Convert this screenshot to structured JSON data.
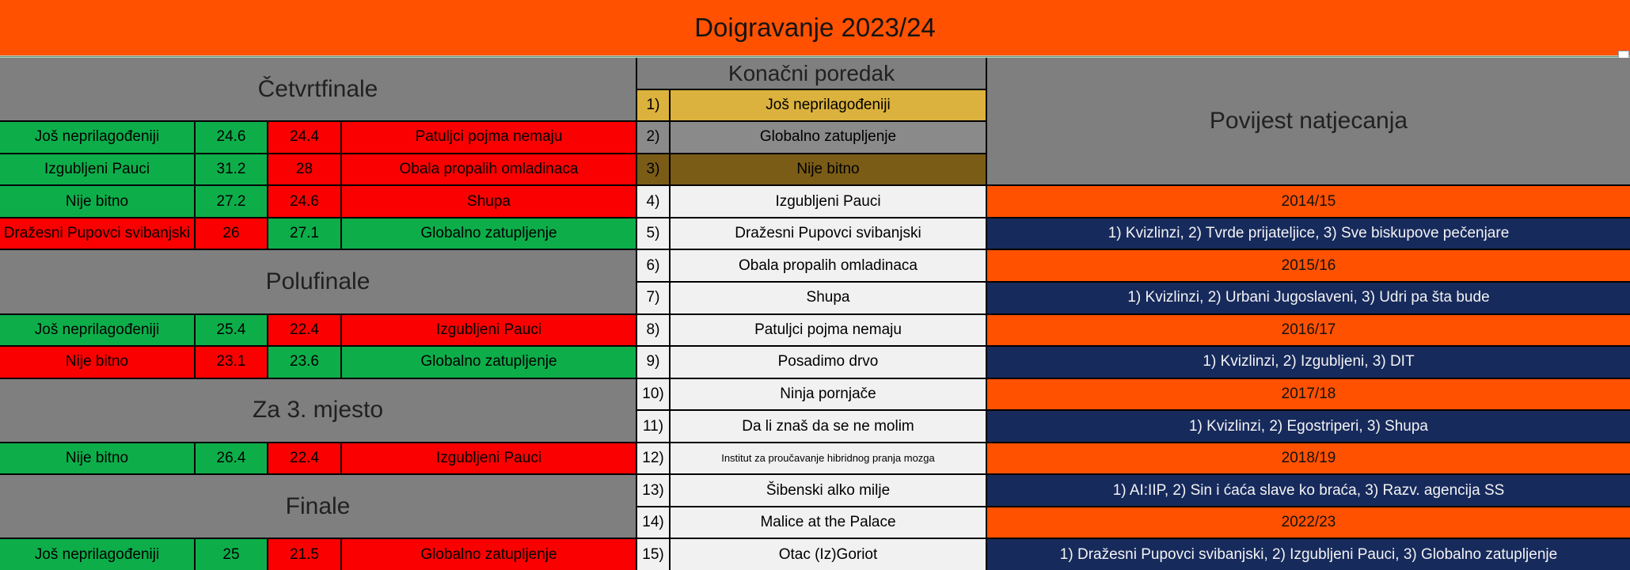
{
  "title": "Doigravanje 2023/24",
  "colors": {
    "accent_orange": "#ff5100",
    "section_gray": "#7f7f7f",
    "win_green": "#0dae4a",
    "loss_red": "#fb0000",
    "gold": "#dbb23d",
    "silver": "#8a8a8a",
    "bronze": "#7a5c17",
    "neutral_row": "#f1f1f1",
    "history_navy": "#172a5c"
  },
  "bracket": {
    "sections": {
      "quarterfinal": "Četvrtfinale",
      "semifinal": "Polufinale",
      "third_place": "Za 3. mjesto",
      "final": "Finale"
    },
    "matches": [
      {
        "team1": "Još neprilagođeniji",
        "score1": "24.6",
        "score2": "24.4",
        "team2": "Patuljci pojma nemaju",
        "r1": "w",
        "r2": "l"
      },
      {
        "team1": "Izgubljeni Pauci",
        "score1": "31.2",
        "score2": "28",
        "team2": "Obala propalih omladinaca",
        "r1": "w",
        "r2": "l"
      },
      {
        "team1": "Nije bitno",
        "score1": "27.2",
        "score2": "24.6",
        "team2": "Shupa",
        "r1": "w",
        "r2": "l"
      },
      {
        "team1": "Dražesni Pupovci svibanjski",
        "score1": "26",
        "score2": "27.1",
        "team2": "Globalno zatupljenje",
        "r1": "l",
        "r2": "w"
      },
      {
        "team1": "Još neprilagođeniji",
        "score1": "25.4",
        "score2": "22.4",
        "team2": "Izgubljeni Pauci",
        "r1": "w",
        "r2": "l"
      },
      {
        "team1": "Nije bitno",
        "score1": "23.1",
        "score2": "23.6",
        "team2": "Globalno zatupljenje",
        "r1": "l",
        "r2": "w"
      },
      {
        "team1": "Nije bitno",
        "score1": "26.4",
        "score2": "22.4",
        "team2": "Izgubljeni Pauci",
        "r1": "w",
        "r2": "l"
      },
      {
        "team1": "Još neprilagođeniji",
        "score1": "25",
        "score2": "21.5",
        "team2": "Globalno zatupljenje",
        "r1": "w",
        "r2": "l"
      }
    ]
  },
  "standings": {
    "header": "Konačni poredak",
    "rows": [
      {
        "rank": "1)",
        "team": "Još neprilagođeniji",
        "medal": "gold"
      },
      {
        "rank": "2)",
        "team": "Globalno zatupljenje",
        "medal": "silver"
      },
      {
        "rank": "3)",
        "team": "Nije bitno",
        "medal": "bronze"
      },
      {
        "rank": "4)",
        "team": "Izgubljeni Pauci",
        "medal": "none"
      },
      {
        "rank": "5)",
        "team": "Dražesni Pupovci svibanjski",
        "medal": "none"
      },
      {
        "rank": "6)",
        "team": "Obala propalih omladinaca",
        "medal": "none"
      },
      {
        "rank": "7)",
        "team": "Shupa",
        "medal": "none"
      },
      {
        "rank": "8)",
        "team": "Patuljci pojma nemaju",
        "medal": "none"
      },
      {
        "rank": "9)",
        "team": "Posadimo drvo",
        "medal": "none"
      },
      {
        "rank": "10)",
        "team": "Ninja pornjače",
        "medal": "none"
      },
      {
        "rank": "11)",
        "team": "Da li znaš da se ne molim",
        "medal": "none"
      },
      {
        "rank": "12)",
        "team": "Institut za proučavanje hibridnog pranja mozga",
        "medal": "none"
      },
      {
        "rank": "13)",
        "team": "Šibenski alko milje",
        "medal": "none"
      },
      {
        "rank": "14)",
        "team": "Malice at the Palace",
        "medal": "none"
      },
      {
        "rank": "15)",
        "team": "Otac (Iz)Goriot",
        "medal": "none"
      }
    ]
  },
  "history": {
    "header": "Povijest natjecanja",
    "entries": [
      {
        "season": "2014/15",
        "podium": "1) Kvizlinzi, 2) Tvrde prijateljice, 3) Sve biskupove pečenjare"
      },
      {
        "season": "2015/16",
        "podium": "1) Kvizlinzi, 2) Urbani Jugoslaveni, 3) Udri pa šta bude"
      },
      {
        "season": "2016/17",
        "podium": "1) Kvizlinzi, 2) Izgubljeni, 3) DIT"
      },
      {
        "season": "2017/18",
        "podium": "1) Kvizlinzi, 2) Egostriperi, 3) Shupa"
      },
      {
        "season": "2018/19",
        "podium": "1) AI:IIP, 2) Sin i ćaća slave ko braća, 3) Razv. agencija SS"
      },
      {
        "season": "2022/23",
        "podium": "1) Dražesni Pupovci svibanjski, 2) Izgubljeni Pauci, 3) Globalno zatupljenje"
      }
    ]
  }
}
